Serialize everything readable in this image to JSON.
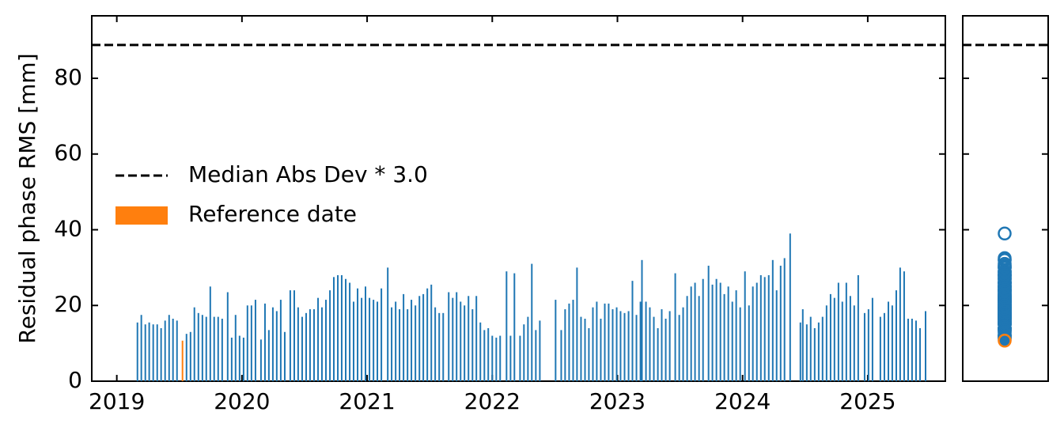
{
  "chart_data": {
    "type": "bar",
    "ylabel": "Residual phase RMS [mm]",
    "xlim": [
      2018.8,
      2025.62
    ],
    "ylim": [
      0,
      96.5
    ],
    "xticks": [
      2019,
      2020,
      2021,
      2022,
      2023,
      2024,
      2025
    ],
    "yticks": [
      0,
      20,
      40,
      60,
      80
    ],
    "legend": "center left",
    "threshold": {
      "name": "Median Abs Dev * 3.0",
      "value": 88.8,
      "color": "#000000"
    },
    "series": [
      {
        "color": "#1f77b4",
        "x": [
          2019.165,
          2019.196,
          2019.228,
          2019.259,
          2019.291,
          2019.323,
          2019.354,
          2019.386,
          2019.418,
          2019.449,
          2019.481,
          2019.557,
          2019.589,
          2019.62,
          2019.652,
          2019.684,
          2019.715,
          2019.747,
          2019.778,
          2019.81,
          2019.842,
          2019.886,
          2019.918,
          2019.949,
          2019.981,
          2020.013,
          2020.044,
          2020.076,
          2020.108,
          2020.152,
          2020.184,
          2020.215,
          2020.247,
          2020.278,
          2020.31,
          2020.342,
          2020.386,
          2020.418,
          2020.449,
          2020.481,
          2020.513,
          2020.544,
          2020.576,
          2020.608,
          2020.639,
          2020.671,
          2020.703,
          2020.734,
          2020.766,
          2020.797,
          2020.829,
          2020.861,
          2020.892,
          2020.924,
          2020.956,
          2020.987,
          2021.019,
          2021.051,
          2021.082,
          2021.114,
          2021.165,
          2021.196,
          2021.228,
          2021.259,
          2021.291,
          2021.323,
          2021.354,
          2021.386,
          2021.418,
          2021.449,
          2021.481,
          2021.513,
          2021.544,
          2021.576,
          2021.608,
          2021.652,
          2021.684,
          2021.715,
          2021.747,
          2021.778,
          2021.81,
          2021.842,
          2021.873,
          2021.905,
          2021.937,
          2021.968,
          2022.0,
          2022.032,
          2022.063,
          2022.114,
          2022.146,
          2022.177,
          2022.222,
          2022.253,
          2022.285,
          2022.316,
          2022.348,
          2022.38,
          2022.506,
          2022.551,
          2022.582,
          2022.614,
          2022.646,
          2022.677,
          2022.709,
          2022.741,
          2022.772,
          2022.804,
          2022.835,
          2022.867,
          2022.899,
          2022.93,
          2022.962,
          2022.994,
          2023.025,
          2023.057,
          2023.089,
          2023.12,
          2023.152,
          2023.184,
          2023.196,
          2023.228,
          2023.259,
          2023.291,
          2023.323,
          2023.354,
          2023.386,
          2023.418,
          2023.462,
          2023.494,
          2023.525,
          2023.557,
          2023.589,
          2023.62,
          2023.652,
          2023.684,
          2023.728,
          2023.759,
          2023.791,
          2023.823,
          2023.854,
          2023.886,
          2023.918,
          2023.949,
          2023.981,
          2024.019,
          2024.051,
          2024.082,
          2024.114,
          2024.146,
          2024.177,
          2024.209,
          2024.241,
          2024.272,
          2024.304,
          2024.335,
          2024.38,
          2024.462,
          2024.481,
          2024.513,
          2024.544,
          2024.576,
          2024.608,
          2024.639,
          2024.671,
          2024.703,
          2024.734,
          2024.766,
          2024.797,
          2024.829,
          2024.861,
          2024.892,
          2024.924,
          2024.975,
          2025.006,
          2025.038,
          2025.101,
          2025.133,
          2025.165,
          2025.196,
          2025.228,
          2025.259,
          2025.291,
          2025.323,
          2025.354,
          2025.386,
          2025.418,
          2025.462
        ],
        "values": [
          15.5,
          17.5,
          15,
          15.5,
          15,
          15,
          14,
          16,
          17.5,
          16.5,
          16,
          12.5,
          13,
          19.5,
          18,
          17.5,
          17,
          25,
          17,
          17,
          16.5,
          23.5,
          11.5,
          17.5,
          12,
          11.5,
          20,
          20,
          21.5,
          11,
          20.5,
          13.5,
          19.5,
          18.5,
          21.5,
          13,
          24,
          24,
          19.5,
          17,
          18,
          19,
          19,
          22,
          19.5,
          21.5,
          24,
          27.5,
          28,
          28,
          27,
          26,
          21,
          24.5,
          22,
          25,
          22,
          21.5,
          21,
          24.5,
          30,
          19.5,
          21,
          19,
          23,
          19,
          21.5,
          20,
          22.5,
          23,
          24.5,
          25.5,
          19.5,
          18,
          18,
          23.5,
          22,
          23.5,
          21,
          20,
          22.5,
          19,
          22.5,
          15.5,
          13.5,
          14,
          12,
          11.5,
          12,
          29,
          12,
          28.5,
          12,
          15,
          17,
          31,
          13.5,
          16,
          21.5,
          13.5,
          19,
          20.5,
          21.5,
          30,
          17,
          16.5,
          14,
          19.5,
          21,
          16.5,
          20.5,
          20.5,
          19,
          19.5,
          18.5,
          18,
          18.5,
          26.5,
          17.5,
          21,
          32,
          21,
          19.5,
          17,
          14,
          19,
          16.5,
          18.5,
          28.5,
          17.5,
          19.5,
          22.5,
          25,
          26,
          22.5,
          27,
          30.5,
          25.5,
          27,
          26,
          23,
          25,
          21,
          24,
          19.5,
          29,
          20,
          25,
          26,
          28,
          27.5,
          28,
          32,
          24,
          30.5,
          32.5,
          39,
          15.5,
          19,
          15,
          17,
          14,
          15.5,
          17,
          20,
          23,
          22,
          26,
          21,
          26,
          22.5,
          20,
          28,
          18,
          19,
          22,
          17,
          18,
          21,
          20,
          24,
          30,
          29,
          16.5,
          16.5,
          16,
          14,
          18.5
        ]
      },
      {
        "name": "Reference date",
        "color": "#ff7f0e",
        "x": [
          2019.525
        ],
        "values": [
          10.7
        ]
      }
    ]
  }
}
